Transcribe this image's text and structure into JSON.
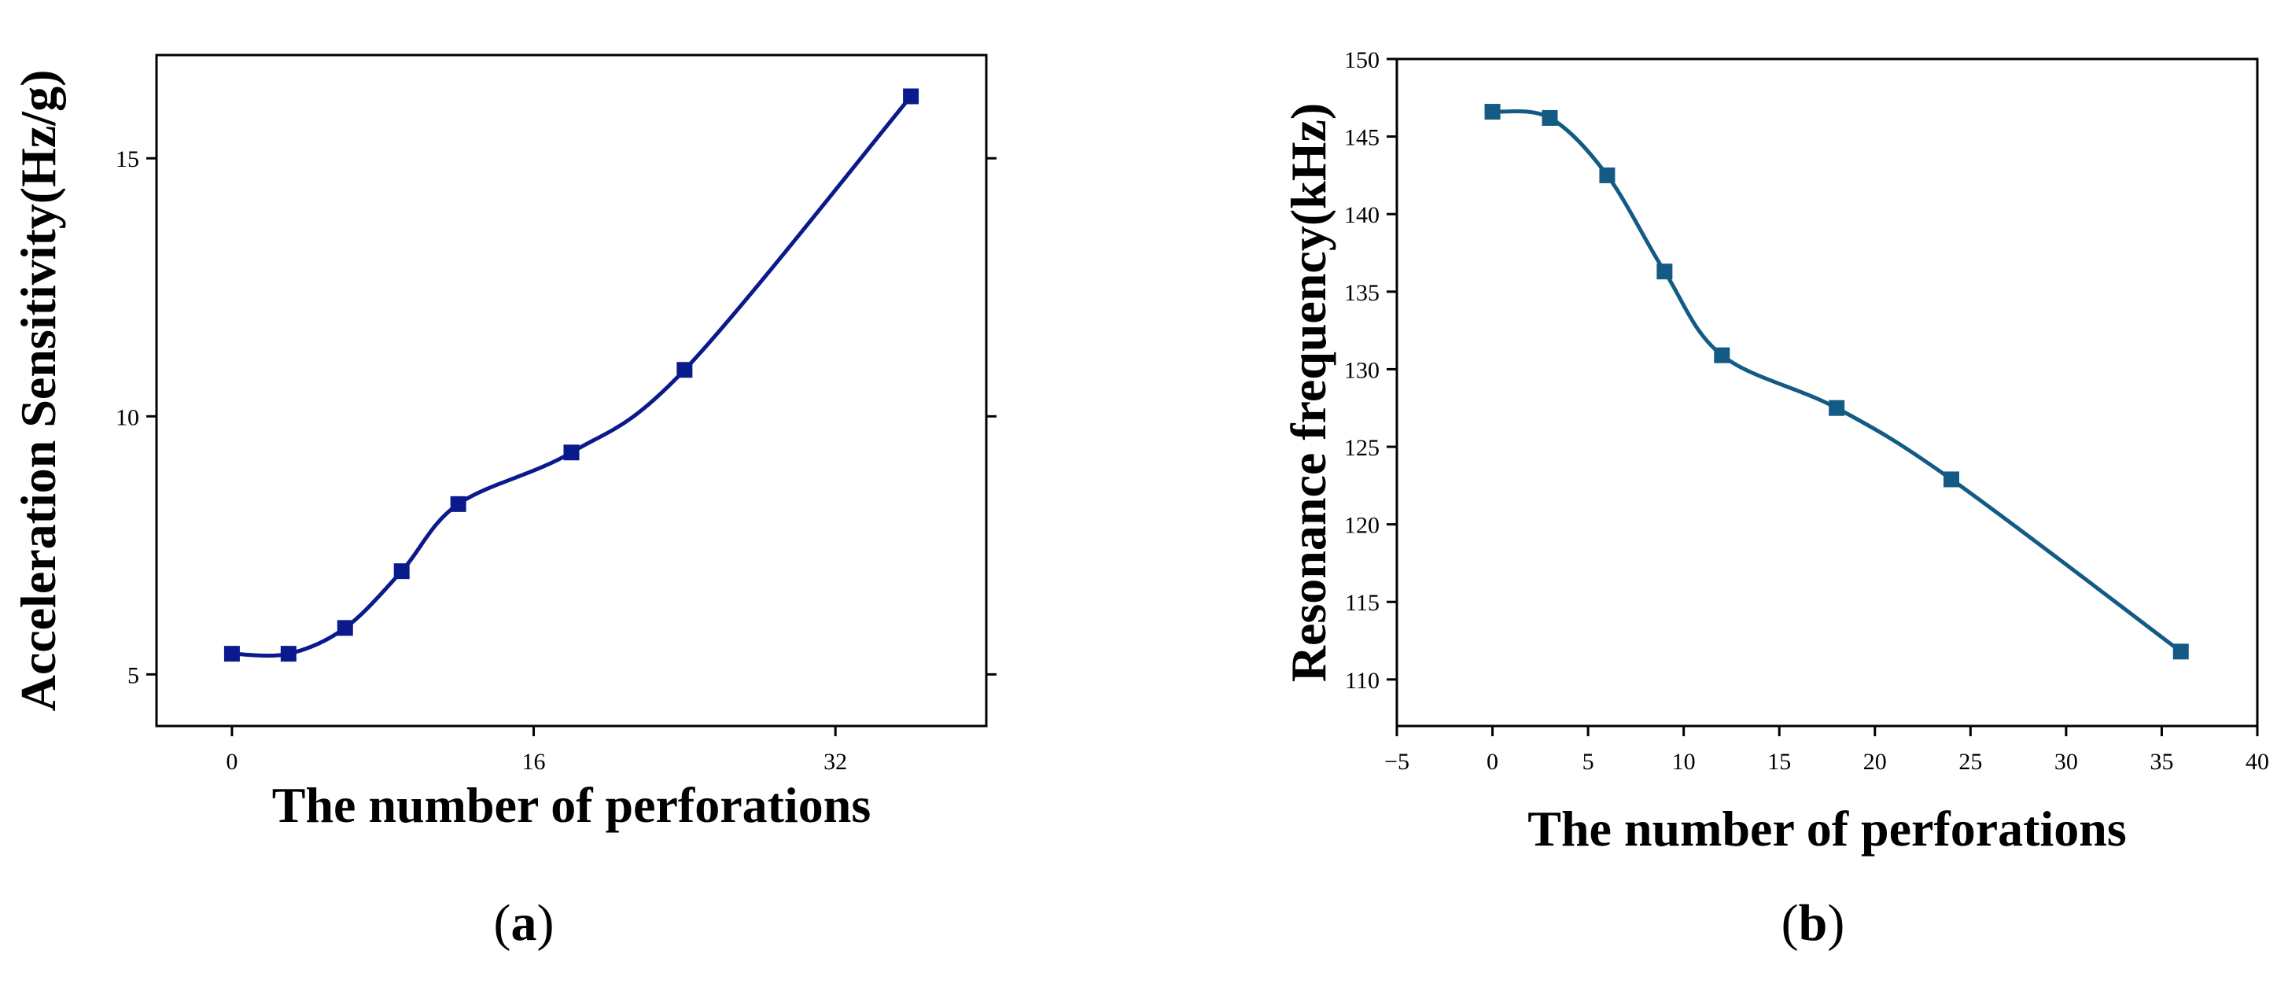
{
  "chart_data": [
    {
      "type": "line",
      "panel_label": "a",
      "xlabel": "The number of perforations",
      "ylabel": "Acceleration Sensitivity(Hz/g)",
      "xlim": [
        -4,
        40
      ],
      "ylim": [
        4,
        17
      ],
      "xticks": [
        0,
        16,
        32
      ],
      "yticks": [
        5,
        10,
        15
      ],
      "grid": false,
      "legend": "none",
      "line_color": "#0a1a8c",
      "marker": "square",
      "series": [
        {
          "x": [
            0,
            3,
            6,
            9,
            12,
            18,
            24,
            36
          ],
          "y": [
            5.4,
            5.4,
            5.9,
            7.0,
            8.3,
            9.3,
            10.9,
            16.2
          ]
        }
      ]
    },
    {
      "type": "line",
      "panel_label": "b",
      "xlabel": "The number of perforations",
      "ylabel": "Resonance frequency(kHz)",
      "xlim": [
        -5,
        40
      ],
      "ylim": [
        107,
        150
      ],
      "xticks": [
        -5,
        0,
        5,
        10,
        15,
        20,
        25,
        30,
        35,
        40
      ],
      "yticks": [
        110,
        115,
        120,
        125,
        130,
        135,
        140,
        145,
        150
      ],
      "grid": false,
      "legend": "none",
      "line_color": "#135a84",
      "marker": "square",
      "series": [
        {
          "x": [
            0,
            3,
            6,
            9,
            12,
            18,
            24,
            36
          ],
          "y": [
            146.6,
            146.2,
            142.5,
            136.3,
            130.9,
            127.5,
            122.9,
            111.8
          ]
        }
      ]
    }
  ]
}
